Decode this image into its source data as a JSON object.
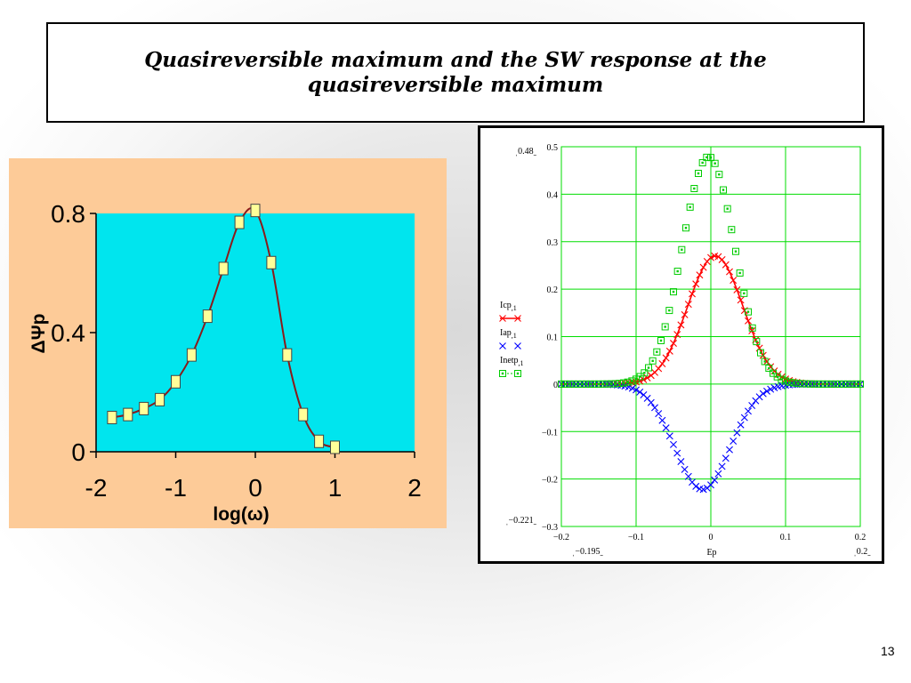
{
  "title": {
    "line1": "Quasireversible maximum and the SW response at the",
    "line2": "quasireversible maximum"
  },
  "slide_number": "13",
  "colors": {
    "left_panel_bg": "#fdcb98",
    "left_plot_bg": "#00e5ee",
    "left_curve": "#8b1a1a",
    "left_marker_fill": "#ffff99",
    "ic": "#ff0000",
    "ia": "#0000ff",
    "inet": "#00cc00",
    "grid": "#00dd00"
  },
  "chart_data": [
    {
      "type": "line",
      "title": "",
      "xlabel": "log(ω)",
      "ylabel": "ΔΨp",
      "xlim": [
        -2,
        2
      ],
      "ylim": [
        0,
        0.8
      ],
      "x_ticks": [
        "-2",
        "-1",
        "0",
        "1",
        "2"
      ],
      "y_ticks": [
        "0",
        "0.4",
        "0.8"
      ],
      "grid": false,
      "series": [
        {
          "x": [
            -1.8,
            -1.6,
            -1.4,
            -1.2,
            -1.0,
            -0.8,
            -0.6,
            -0.4,
            -0.2,
            0.0,
            0.2,
            0.4,
            0.6,
            0.8,
            1.0
          ],
          "y": [
            0.115,
            0.125,
            0.145,
            0.175,
            0.235,
            0.325,
            0.455,
            0.615,
            0.77,
            0.81,
            0.635,
            0.325,
            0.125,
            0.035,
            0.015
          ]
        }
      ]
    },
    {
      "type": "scatter",
      "title": "",
      "xlabel": "Ep",
      "x_range_labels": [
        "−0.195",
        "0.2"
      ],
      "y_range_labels": [
        "0.48",
        "−0.221"
      ],
      "xlim": [
        -0.2,
        0.2
      ],
      "ylim": [
        -0.3,
        0.5
      ],
      "x_ticks": [
        "−0.2",
        "−0.1",
        "0",
        "0.1",
        "0.2"
      ],
      "y_ticks": [
        "0.5",
        "0.4",
        "0.3",
        "0.2",
        "0.1",
        "0",
        "−0.1",
        "−0.2",
        "−0.3"
      ],
      "grid": true,
      "legend_position": "left",
      "series": [
        {
          "name": "Icp,1",
          "marker": "x-line",
          "center": 0.006,
          "width": 0.037,
          "peak": 0.27
        },
        {
          "name": "Iap,1",
          "marker": "x",
          "center": -0.011,
          "width": 0.037,
          "peak": -0.222
        },
        {
          "name": "Inetp,1",
          "marker": "square",
          "center": -0.003,
          "width": 0.035,
          "peak": 0.479
        }
      ]
    }
  ]
}
